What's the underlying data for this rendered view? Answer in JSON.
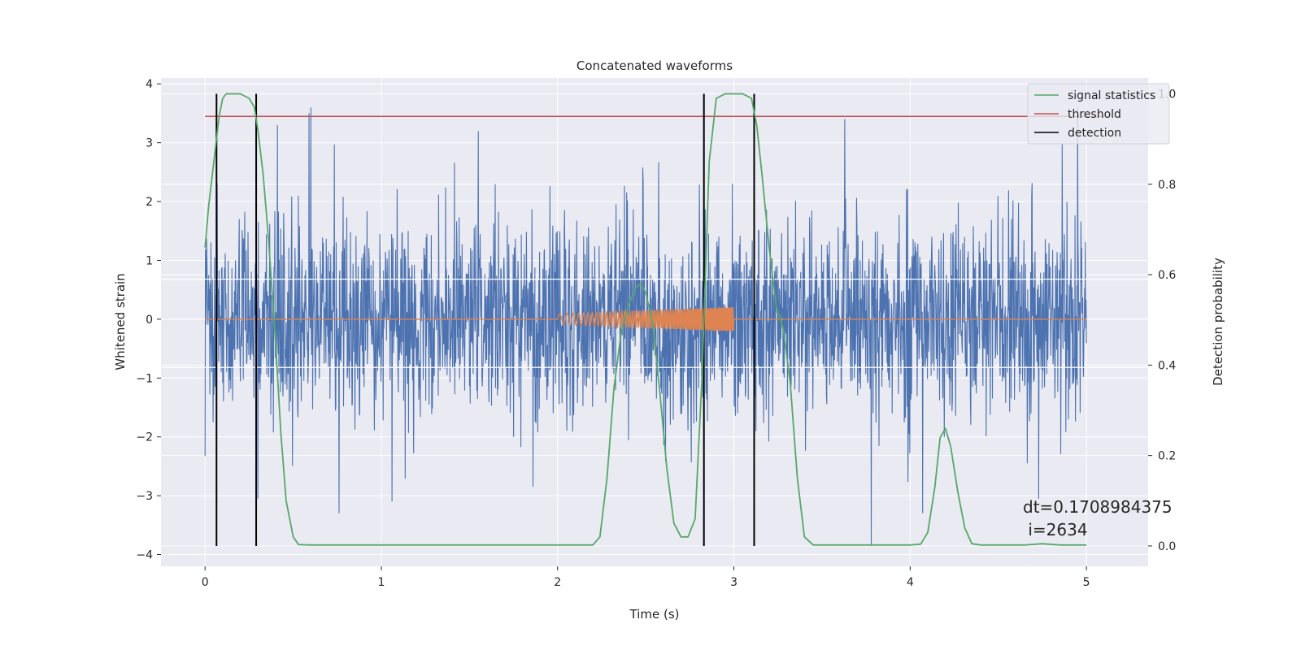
{
  "chart_data": {
    "type": "line",
    "title": "Concatenated waveforms",
    "xlabel": "Time (s)",
    "ylabel": "Whitened strain",
    "y2label": "Detection probability",
    "xlim": [
      -0.25,
      5.35
    ],
    "ylim": [
      -4.2,
      4.1
    ],
    "y2lim": [
      -0.045,
      1.035
    ],
    "xticks": [
      0,
      1,
      2,
      3,
      4,
      5
    ],
    "yticks": [
      -4,
      -3,
      -2,
      -1,
      0,
      1,
      2,
      3,
      4
    ],
    "y2ticks": [
      0.0,
      0.2,
      0.4,
      0.6,
      0.8,
      1.0
    ],
    "y2ticklabels": [
      "0.0",
      "0.2",
      "0.4",
      "0.6",
      "0.8",
      "1.0"
    ],
    "grid": true,
    "legend_position": "top-right",
    "series": [
      {
        "key": "strain",
        "axis": "left",
        "color": "#4c72b0",
        "description": "whitened strain noise, roughly Gaussian with sigma about 0.8",
        "x_range": [
          0,
          5
        ],
        "peak_high": [
          [
            0.59,
            3.5
          ],
          [
            0.6,
            3.6
          ],
          [
            1.55,
            3.2
          ],
          [
            3.63,
            3.4
          ],
          [
            4.95,
            3.6
          ],
          [
            0.41,
            3.3
          ]
        ],
        "peak_low": [
          [
            0.3,
            -3.05
          ],
          [
            0.76,
            -3.3
          ],
          [
            1.06,
            -3.1
          ],
          [
            3.78,
            -3.85
          ],
          [
            4.07,
            -3.3
          ],
          [
            4.73,
            -3.05
          ],
          [
            1.86,
            -2.85
          ]
        ]
      },
      {
        "key": "injected",
        "axis": "left",
        "color": "#dd8452",
        "description": "injected chirp waveform, zero outside 2.0-3.0 s, amplitude grows from about 0.1 to 0.2"
      },
      {
        "key": "stat",
        "name": "signal statistics",
        "axis": "right",
        "color": "#55a868",
        "x": [
          0,
          0.02,
          0.05,
          0.08,
          0.1,
          0.12,
          0.15,
          0.2,
          0.25,
          0.28,
          0.3,
          0.33,
          0.36,
          0.4,
          0.43,
          0.46,
          0.5,
          0.53,
          0.6,
          1.0,
          1.5,
          2.0,
          2.2,
          2.24,
          2.28,
          2.32,
          2.36,
          2.4,
          2.44,
          2.47,
          2.5,
          2.54,
          2.58,
          2.62,
          2.66,
          2.7,
          2.74,
          2.78,
          2.82,
          2.86,
          2.9,
          2.95,
          3.0,
          3.05,
          3.1,
          3.13,
          3.16,
          3.2,
          3.24,
          3.28,
          3.32,
          3.36,
          3.4,
          3.45,
          3.5,
          3.8,
          4.0,
          4.06,
          4.1,
          4.14,
          4.17,
          4.2,
          4.23,
          4.27,
          4.31,
          4.35,
          4.4,
          4.5,
          4.65,
          4.75,
          4.85,
          5.0
        ],
        "values": [
          0.66,
          0.75,
          0.85,
          0.95,
          0.99,
          1.0,
          1.0,
          1.0,
          0.99,
          0.97,
          0.92,
          0.82,
          0.68,
          0.45,
          0.25,
          0.1,
          0.02,
          0.003,
          0.002,
          0.002,
          0.002,
          0.002,
          0.002,
          0.02,
          0.15,
          0.35,
          0.47,
          0.53,
          0.57,
          0.58,
          0.56,
          0.49,
          0.34,
          0.17,
          0.05,
          0.02,
          0.02,
          0.06,
          0.38,
          0.85,
          0.99,
          1.0,
          1.0,
          1.0,
          0.99,
          0.93,
          0.82,
          0.66,
          0.53,
          0.48,
          0.36,
          0.15,
          0.02,
          0.002,
          0.002,
          0.002,
          0.002,
          0.004,
          0.03,
          0.13,
          0.24,
          0.26,
          0.22,
          0.12,
          0.04,
          0.005,
          0.002,
          0.002,
          0.002,
          0.005,
          0.002,
          0.002
        ]
      },
      {
        "key": "threshold",
        "name": "threshold",
        "axis": "right",
        "color": "#c44e52",
        "x": [
          0,
          5.1
        ],
        "values": [
          0.95,
          0.95
        ]
      },
      {
        "key": "detection",
        "name": "detection",
        "axis": "right",
        "color": "#000000",
        "type": "vlines",
        "x": [
          0.065,
          0.29,
          2.83,
          3.115
        ],
        "ymin": 0.0,
        "ymax": 1.0
      }
    ],
    "horizontal_lines_left_axis": [
      0.68,
      -0.82
    ],
    "annotation": {
      "line1": "dt=0.1708984375",
      "line2": " i=2634"
    }
  }
}
